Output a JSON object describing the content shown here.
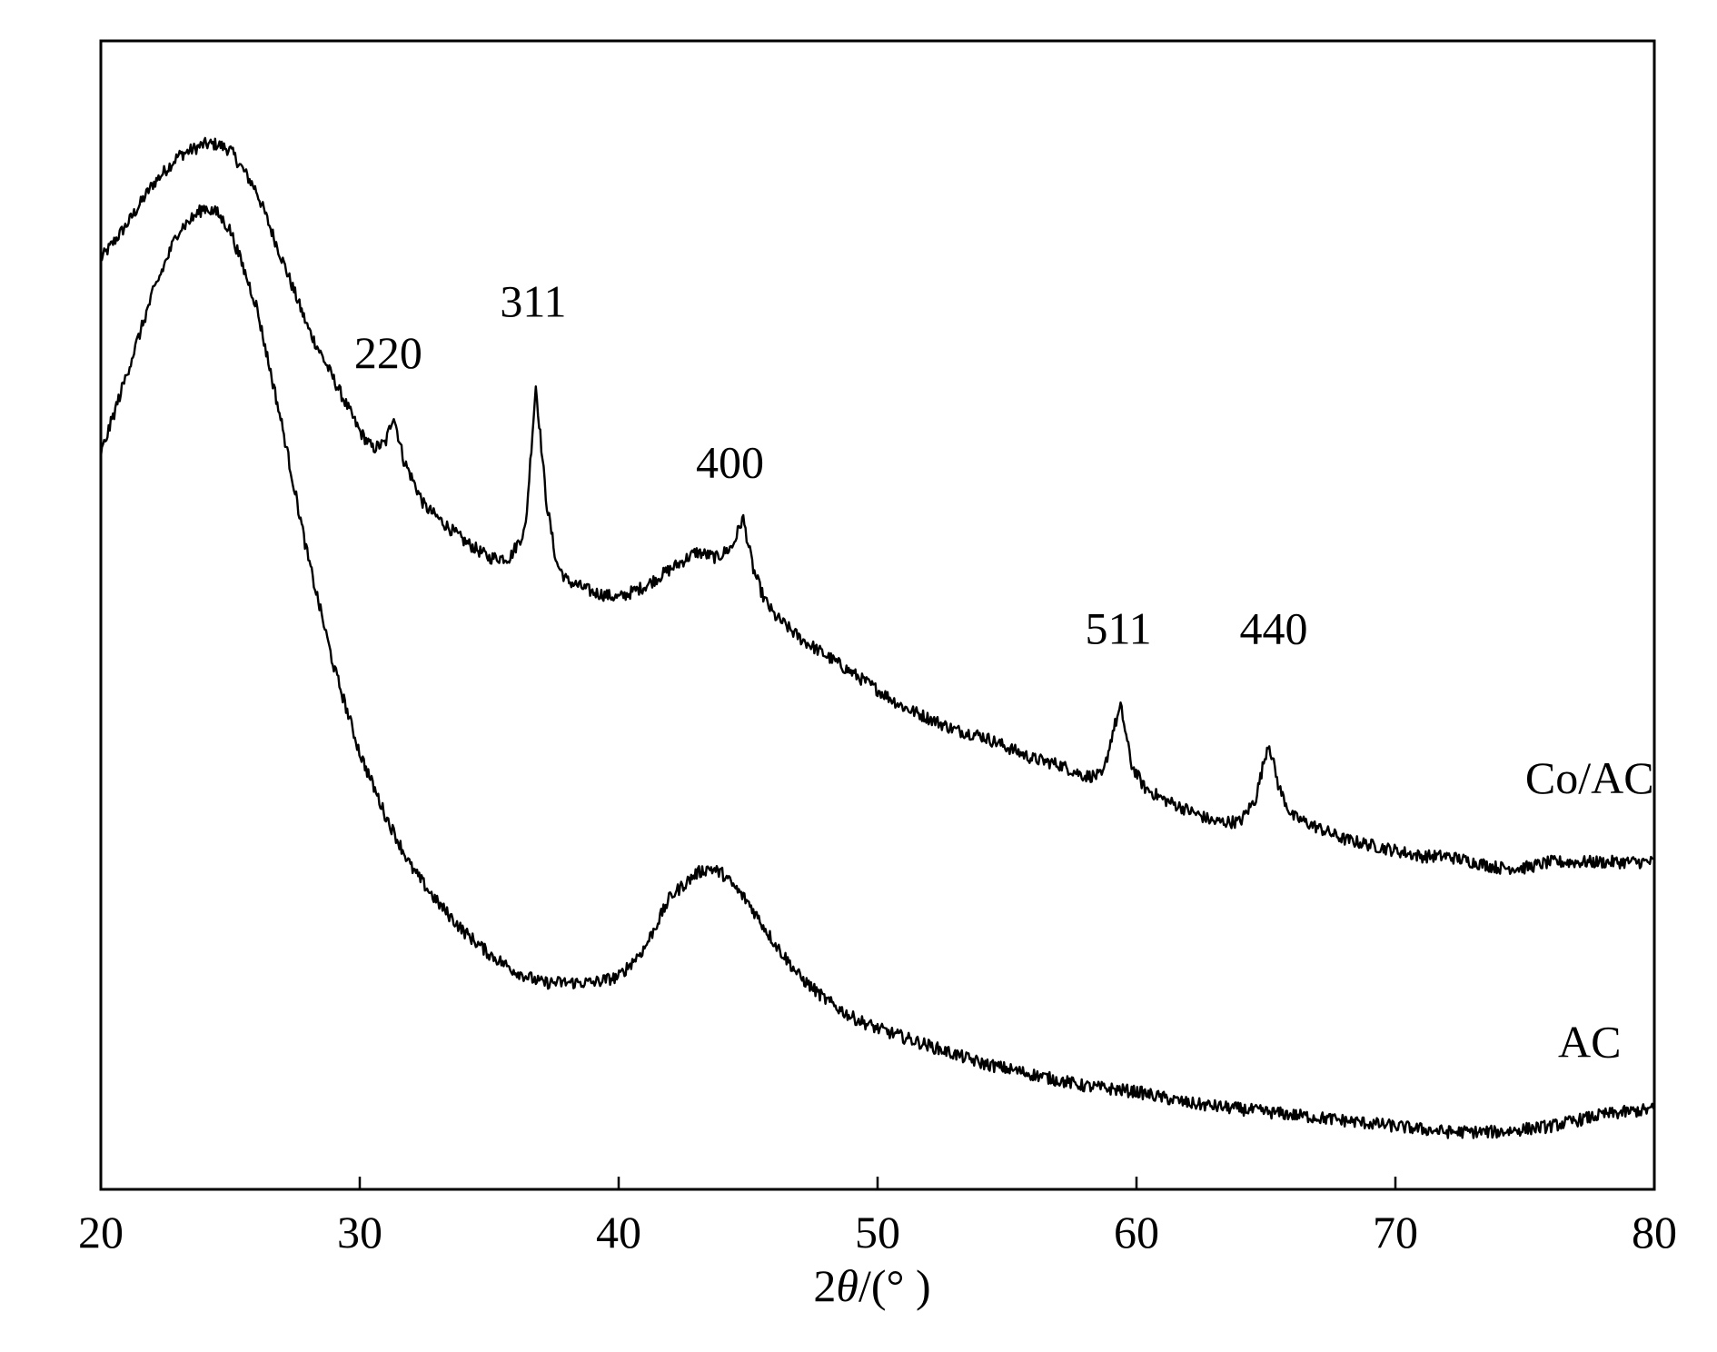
{
  "chart_data": {
    "type": "line",
    "title": "",
    "xlabel": "2θ/(° )",
    "xlabel_parts": {
      "prefix": "2",
      "symbol": "θ",
      "suffix": "/(° )"
    },
    "ylabel": "",
    "xlim": [
      20,
      80
    ],
    "xticks": [
      20,
      30,
      40,
      50,
      60,
      70,
      80
    ],
    "y_ticks_shown": false,
    "grid": false,
    "series": [
      {
        "name": "Co/AC",
        "color": "#000000",
        "x": [
          20,
          21,
          22,
          23,
          24,
          24.5,
          25,
          26,
          27,
          28,
          29,
          30,
          30.5,
          31,
          31.3,
          31.7,
          32.5,
          33,
          34,
          35,
          35.8,
          36.4,
          36.8,
          37.2,
          37.6,
          38,
          39,
          40,
          41,
          42,
          43,
          43.8,
          44.4,
          44.8,
          45.2,
          45.6,
          46,
          47,
          48,
          49,
          50,
          51,
          52,
          53,
          54,
          55,
          56,
          57,
          58,
          58.7,
          59.1,
          59.4,
          59.8,
          60.3,
          61,
          62,
          63,
          64,
          64.6,
          65.1,
          65.5,
          66,
          67,
          68,
          69,
          70,
          71,
          72,
          73,
          74,
          75,
          76,
          77,
          78,
          79,
          80
        ],
        "y": [
          81.0,
          84.0,
          87.5,
          90.0,
          91.0,
          91.0,
          90.5,
          87.0,
          81.0,
          75.0,
          70.5,
          66.0,
          64.5,
          65.0,
          67.5,
          63.5,
          59.5,
          58.5,
          56.5,
          55.0,
          55.0,
          57.5,
          70.0,
          60.0,
          54.5,
          53.0,
          52.0,
          51.5,
          52.5,
          54.0,
          55.5,
          55.0,
          56.0,
          58.5,
          54.0,
          51.5,
          50.0,
          48.0,
          46.5,
          45.0,
          43.5,
          42.0,
          41.0,
          40.0,
          39.5,
          38.5,
          37.5,
          37.0,
          36.0,
          36.0,
          40.0,
          42.0,
          37.0,
          35.0,
          34.0,
          33.0,
          32.0,
          32.0,
          34.0,
          39.0,
          35.0,
          32.5,
          31.5,
          30.5,
          30.0,
          29.5,
          29.0,
          29.0,
          28.5,
          28.0,
          28.0,
          28.5,
          28.5,
          28.5,
          28.5,
          28.5
        ]
      },
      {
        "name": "AC",
        "color": "#000000",
        "x": [
          20,
          21,
          22,
          23,
          24,
          24.5,
          25,
          26,
          27,
          28,
          29,
          30,
          31,
          32,
          33,
          34,
          35,
          36,
          37,
          38,
          39,
          40,
          41,
          42,
          43,
          43.5,
          44,
          45,
          46,
          47,
          48,
          49,
          50,
          52,
          54,
          56,
          58,
          60,
          62,
          64,
          66,
          68,
          70,
          72,
          74,
          76,
          78,
          80
        ],
        "y": [
          64.0,
          71.0,
          78.0,
          83.5,
          85.5,
          85.0,
          83.5,
          77.0,
          66.5,
          55.0,
          45.5,
          38.0,
          32.5,
          28.0,
          25.0,
          22.5,
          20.5,
          19.0,
          18.0,
          18.0,
          18.0,
          18.5,
          21.0,
          25.5,
          27.5,
          28.0,
          27.5,
          25.0,
          21.5,
          18.5,
          16.5,
          15.0,
          14.0,
          12.5,
          11.0,
          10.0,
          9.0,
          8.5,
          7.5,
          7.0,
          6.5,
          6.0,
          5.5,
          5.0,
          5.0,
          5.5,
          6.5,
          7.0
        ]
      }
    ],
    "series_labels": [
      {
        "text": "Co/AC",
        "series": "Co/AC",
        "x": 77.5,
        "y": 34.5
      },
      {
        "text": "AC",
        "series": "AC",
        "x": 77.5,
        "y": 11.5
      }
    ],
    "annotations": [
      {
        "text": "220",
        "x": 31.1,
        "y": 71.5
      },
      {
        "text": "311",
        "x": 36.7,
        "y": 76.0
      },
      {
        "text": "400",
        "x": 44.3,
        "y": 62.0
      },
      {
        "text": "511",
        "x": 59.3,
        "y": 47.5
      },
      {
        "text": "440",
        "x": 65.3,
        "y": 47.5
      }
    ]
  }
}
